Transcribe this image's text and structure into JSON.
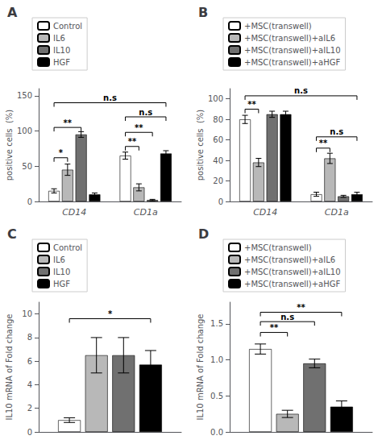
{
  "chart_data": [
    {
      "type": "bar",
      "title": "A",
      "categories": [
        "CD14",
        "CD1a"
      ],
      "series": [
        {
          "name": "Control",
          "color": "#ffffff",
          "values": [
            15,
            65
          ],
          "errors": [
            3,
            5
          ]
        },
        {
          "name": "IL6",
          "color": "#b8b8b8",
          "values": [
            45,
            20
          ],
          "errors": [
            8,
            5
          ]
        },
        {
          "name": "IL10",
          "color": "#707070",
          "values": [
            95,
            2
          ],
          "errors": [
            4,
            1
          ]
        },
        {
          "name": "HGF",
          "color": "#000000",
          "values": [
            10,
            68
          ],
          "errors": [
            2,
            4
          ]
        }
      ],
      "y_label": "positive cells  (%)",
      "ylim": [
        0,
        160
      ],
      "yticks": [
        0,
        50,
        100,
        150
      ],
      "grid": false,
      "legend": "top left",
      "annotations": [
        {
          "text": "*",
          "y": 62,
          "from": [
            0,
            0
          ],
          "to": [
            0,
            1
          ]
        },
        {
          "text": "**",
          "y": 105,
          "from": [
            0,
            0
          ],
          "to": [
            0,
            2
          ]
        },
        {
          "text": "**",
          "y": 78,
          "from": [
            1,
            0
          ],
          "to": [
            1,
            1
          ]
        },
        {
          "text": "**",
          "y": 98,
          "from": [
            1,
            0
          ],
          "to": [
            1,
            2
          ]
        },
        {
          "text": "n.s",
          "y": 140,
          "from": [
            0,
            0
          ],
          "to": [
            1,
            3
          ]
        },
        {
          "text": "n.s",
          "y": 120,
          "from": [
            1,
            0
          ],
          "to": [
            1,
            3
          ]
        }
      ]
    },
    {
      "type": "bar",
      "title": "B",
      "categories": [
        "CD14",
        "CD1a"
      ],
      "series": [
        {
          "name": "+MSC(transwell)",
          "color": "#ffffff",
          "values": [
            80,
            7
          ],
          "errors": [
            4,
            2
          ]
        },
        {
          "name": "+MSC(transwell)+aIL6",
          "color": "#b8b8b8",
          "values": [
            38,
            42
          ],
          "errors": [
            4,
            5
          ]
        },
        {
          "name": "+MSC(transwell)+aIL10",
          "color": "#707070",
          "values": [
            85,
            5
          ],
          "errors": [
            3,
            1
          ]
        },
        {
          "name": "+MSC(transwell)+aHGF",
          "color": "#000000",
          "values": [
            85,
            7
          ],
          "errors": [
            3,
            2
          ]
        }
      ],
      "y_label": "positive cells  (%)",
      "ylim": [
        0,
        110
      ],
      "yticks": [
        0,
        20,
        40,
        60,
        80,
        100
      ],
      "grid": false,
      "legend": "top left",
      "annotations": [
        {
          "text": "**",
          "y": 90,
          "from": [
            0,
            0
          ],
          "to": [
            0,
            1
          ]
        },
        {
          "text": "n.s",
          "y": 103,
          "from": [
            0,
            0
          ],
          "to": [
            1,
            3
          ]
        },
        {
          "text": "**",
          "y": 52,
          "from": [
            1,
            0
          ],
          "to": [
            1,
            1
          ]
        },
        {
          "text": "n.s",
          "y": 63,
          "from": [
            1,
            0
          ],
          "to": [
            1,
            3
          ]
        }
      ]
    },
    {
      "type": "bar",
      "title": "C",
      "categories": [
        null
      ],
      "series": [
        {
          "name": "Control",
          "color": "#ffffff",
          "values": [
            1.0
          ],
          "errors": [
            0.2
          ]
        },
        {
          "name": "IL6",
          "color": "#b8b8b8",
          "values": [
            6.5
          ],
          "errors": [
            1.5
          ]
        },
        {
          "name": "IL10",
          "color": "#707070",
          "values": [
            6.5
          ],
          "errors": [
            1.5
          ]
        },
        {
          "name": "HGF",
          "color": "#000000",
          "values": [
            5.7
          ],
          "errors": [
            1.2
          ]
        }
      ],
      "y_label": "IL10 mRNA of Fold change",
      "ylim": [
        0,
        11
      ],
      "yticks": [
        0,
        2,
        4,
        6,
        8,
        10
      ],
      "grid": false,
      "legend": "top left",
      "tick_labels": "y",
      "annotations": [
        {
          "text": "*",
          "y": 9.6,
          "from": [
            0,
            0
          ],
          "to": [
            0,
            3
          ]
        }
      ]
    },
    {
      "type": "bar",
      "title": "D",
      "categories": [
        null
      ],
      "series": [
        {
          "name": "+MSC(transwell)",
          "color": "#ffffff",
          "values": [
            1.15
          ],
          "errors": [
            0.07
          ]
        },
        {
          "name": "+MSC(transwell)+aIL6",
          "color": "#b8b8b8",
          "values": [
            0.25
          ],
          "errors": [
            0.05
          ]
        },
        {
          "name": "+MSC(transwell)+aIL10",
          "color": "#707070",
          "values": [
            0.95
          ],
          "errors": [
            0.06
          ]
        },
        {
          "name": "+MSC(transwell)+aHGF",
          "color": "#000000",
          "values": [
            0.35
          ],
          "errors": [
            0.08
          ]
        }
      ],
      "y_label": "IL10 mRNA of Fold change",
      "ylim": [
        0,
        1.8
      ],
      "yticks": [
        {
          "value": 0,
          "label": "0.0"
        },
        0.5,
        {
          "value": 1,
          "label": "1.0"
        },
        1.5
      ],
      "grid": false,
      "legend": "top left",
      "tick_labels": "y",
      "annotations": [
        {
          "text": "**",
          "y": 1.38,
          "from": [
            0,
            0
          ],
          "to": [
            0,
            1
          ]
        },
        {
          "text": "n.s",
          "y": 1.53,
          "from": [
            0,
            0
          ],
          "to": [
            0,
            2
          ]
        },
        {
          "text": "**",
          "y": 1.66,
          "from": [
            0,
            0
          ],
          "to": [
            0,
            3
          ]
        }
      ]
    }
  ]
}
